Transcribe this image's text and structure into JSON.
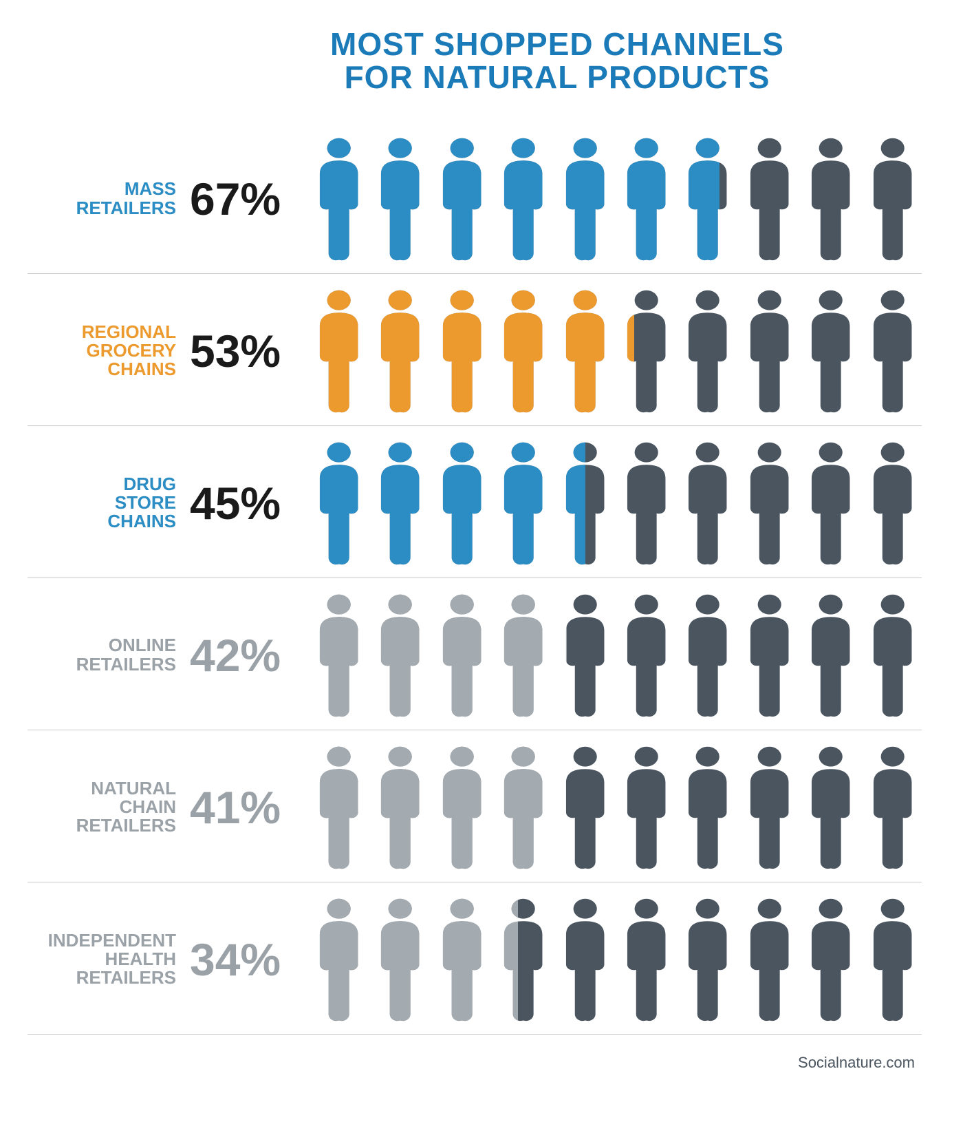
{
  "title_line1": "MOST SHOPPED CHANNELS",
  "title_line2": "FOR NATURAL PRODUCTS",
  "title_color": "#1b7bb8",
  "title_fontsize": 46,
  "icon_count": 10,
  "base_icon_color": "#4a5560",
  "colors": {
    "blue": "#2b8dc4",
    "orange": "#ec9a2e",
    "light_gray": "#a3abb1",
    "black": "#1a1a1a",
    "label_gray": "#9aa1a7"
  },
  "label_fontsize": 26,
  "pct_fontsize": 66,
  "rows": [
    {
      "label": "MASS\nRETAILERS",
      "pct": 67,
      "fill_color": "#2b8dc4",
      "label_color": "#2b8dc4",
      "pct_color": "#1a1a1a"
    },
    {
      "label": "REGIONAL\nGROCERY\nCHAINS",
      "pct": 53,
      "fill_color": "#ec9a2e",
      "label_color": "#ec9a2e",
      "pct_color": "#1a1a1a"
    },
    {
      "label": "DRUG\nSTORE\nCHAINS",
      "pct": 45,
      "fill_color": "#2b8dc4",
      "label_color": "#2b8dc4",
      "pct_color": "#1a1a1a"
    },
    {
      "label": "ONLINE\nRETAILERS",
      "pct": 42,
      "fill_color": "#a3abb1",
      "label_color": "#9aa1a7",
      "pct_color": "#9aa1a7"
    },
    {
      "label": "NATURAL\nCHAIN\nRETAILERS",
      "pct": 41,
      "fill_color": "#a3abb1",
      "label_color": "#9aa1a7",
      "pct_color": "#9aa1a7"
    },
    {
      "label": "INDEPENDENT\nHEALTH\nRETAILERS",
      "pct": 34,
      "fill_color": "#a3abb1",
      "label_color": "#9aa1a7",
      "pct_color": "#9aa1a7"
    }
  ],
  "footer": "Socialnature.com",
  "struct": {
    "type": "pictogram-bar",
    "icons_per_row": 10,
    "icon_person_aspect": 0.43,
    "background_color": "#ffffff",
    "divider_color": "#c9c9c9"
  }
}
